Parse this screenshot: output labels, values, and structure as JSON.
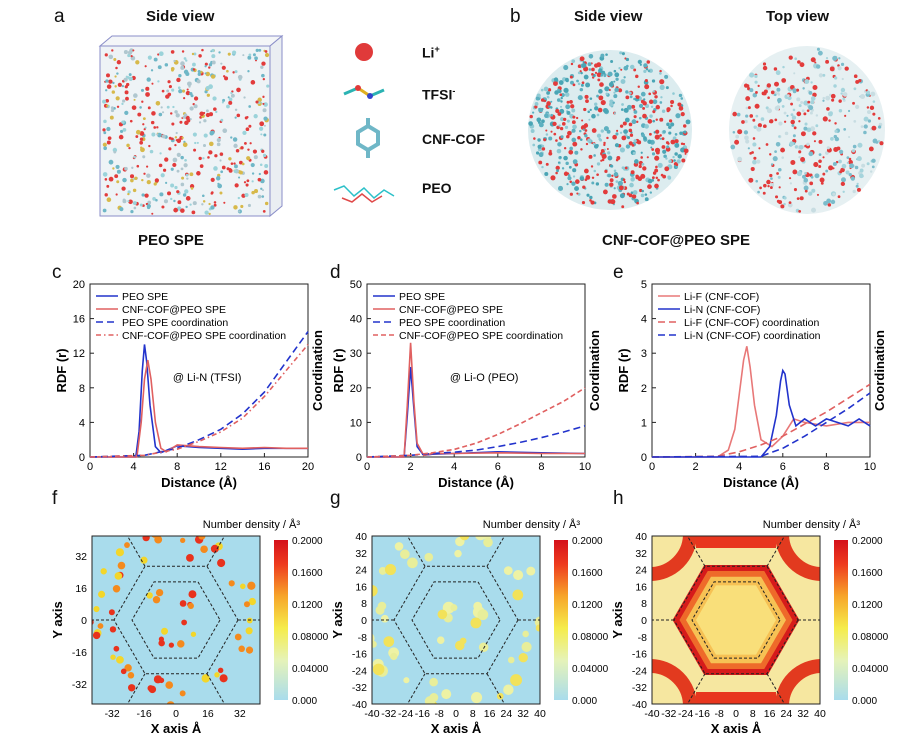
{
  "panels": {
    "a": {
      "letter": "a",
      "title": "Side view",
      "caption": "PEO  SPE"
    },
    "b": {
      "letter": "b",
      "title_left": "Side view",
      "title_right": "Top view",
      "caption": "CNF-COF@PEO  SPE"
    },
    "legend": {
      "li": "Li",
      "li_sup": "+",
      "tfsi": "TFSI",
      "tfsi_sup": "-",
      "cof": "CNF-COF",
      "peo": "PEO"
    }
  },
  "chart_data": [
    {
      "id": "c",
      "letter": "c",
      "type": "line",
      "xlabel": "Distance (Å)",
      "ylabel": "RDF (r)",
      "y2label": "Coordination",
      "annotation": "@ Li-N (TFSI)",
      "xlim": [
        0,
        20
      ],
      "ylim": [
        0,
        20
      ],
      "xticks": [
        0,
        4,
        8,
        12,
        16,
        20
      ],
      "yticks": [
        0,
        4,
        8,
        12,
        16,
        20
      ],
      "series": [
        {
          "name": "PEO SPE",
          "color": "#2233cc",
          "dash": "",
          "x": [
            0,
            4.2,
            4.5,
            4.8,
            5.0,
            5.2,
            5.5,
            6.0,
            6.5,
            8,
            10,
            12,
            14,
            16,
            18,
            20
          ],
          "y": [
            0,
            0,
            3,
            10,
            13,
            11,
            6,
            1.2,
            0.5,
            1.3,
            1.1,
            1.0,
            0.9,
            1.0,
            1.0,
            1.0
          ]
        },
        {
          "name": "CNF-COF@PEO SPE",
          "color": "#e06060",
          "dash": "",
          "x": [
            0,
            4.3,
            4.7,
            5.0,
            5.3,
            5.6,
            6.0,
            6.5,
            7,
            8,
            10,
            12,
            14,
            16,
            18,
            20
          ],
          "y": [
            0,
            0,
            4,
            9,
            11.2,
            9,
            4,
            1.0,
            0.6,
            1.4,
            1.2,
            1.1,
            1.0,
            1.1,
            1.0,
            1.0
          ]
        },
        {
          "name": "PEO SPE coordination",
          "color": "#2233cc",
          "dash": "7,4",
          "x": [
            0,
            5,
            8,
            10,
            12,
            14,
            16,
            18,
            20
          ],
          "y": [
            0,
            0.2,
            1,
            2,
            3.2,
            5,
            7.5,
            11,
            14.5
          ]
        },
        {
          "name": "CNF-COF@PEO SPE coordination",
          "color": "#e06060",
          "dash": "5,3,1.5,3",
          "x": [
            0,
            5,
            8,
            10,
            12,
            14,
            16,
            18,
            20
          ],
          "y": [
            0,
            0.2,
            0.9,
            1.8,
            2.9,
            4.5,
            7,
            10,
            13
          ]
        }
      ]
    },
    {
      "id": "d",
      "letter": "d",
      "type": "line",
      "xlabel": "Distance (Å)",
      "ylabel": "RDF (r)",
      "y2label": "Coordination",
      "annotation": "@ Li-O (PEO)",
      "xlim": [
        0,
        10
      ],
      "ylim": [
        0,
        50
      ],
      "xticks": [
        0,
        2,
        4,
        6,
        8,
        10
      ],
      "yticks": [
        0,
        10,
        20,
        30,
        40,
        50
      ],
      "series": [
        {
          "name": "PEO SPE",
          "color": "#2233cc",
          "dash": "",
          "x": [
            0,
            1.7,
            1.85,
            2.0,
            2.15,
            2.3,
            2.6,
            3,
            4,
            6,
            8,
            10
          ],
          "y": [
            0,
            0,
            12,
            26,
            14,
            3,
            0.5,
            0.8,
            1.0,
            1.5,
            1.2,
            1.0
          ]
        },
        {
          "name": "CNF-COF@PEO SPE",
          "color": "#e06060",
          "dash": "",
          "x": [
            0,
            1.7,
            1.85,
            2.0,
            2.15,
            2.3,
            2.6,
            3,
            4,
            6,
            8,
            10
          ],
          "y": [
            0,
            0,
            15,
            33,
            16,
            4,
            0.5,
            1.0,
            1.0,
            1.2,
            1.0,
            1.0
          ]
        },
        {
          "name": "PEO SPE coordination",
          "color": "#2233cc",
          "dash": "7,4",
          "x": [
            0,
            2,
            3,
            4,
            5,
            6,
            7,
            8,
            9,
            10
          ],
          "y": [
            0,
            0.5,
            1,
            1.4,
            2,
            3,
            4.2,
            5.6,
            7.2,
            9
          ]
        },
        {
          "name": "CNF-COF@PEO SPE coordination",
          "color": "#e06060",
          "dash": "5,3",
          "x": [
            0,
            2,
            3,
            4,
            5,
            6,
            7,
            8,
            9,
            10
          ],
          "y": [
            0,
            0.5,
            1.2,
            2.2,
            4,
            6.5,
            9.5,
            12.8,
            16,
            20
          ]
        }
      ]
    },
    {
      "id": "e",
      "letter": "e",
      "type": "line",
      "xlabel": "Distance (Å)",
      "ylabel": "RDF (r)",
      "y2label": "Coordination",
      "annotation": "",
      "xlim": [
        0,
        10
      ],
      "ylim": [
        0,
        5
      ],
      "xticks": [
        0,
        2,
        4,
        6,
        8,
        10
      ],
      "yticks": [
        0,
        1,
        2,
        3,
        4,
        5
      ],
      "series": [
        {
          "name": "Li-F (CNF-COF)",
          "color": "#e87878",
          "dash": "",
          "x": [
            0,
            3,
            3.5,
            3.8,
            4.0,
            4.2,
            4.35,
            4.5,
            4.7,
            5.0,
            5.5,
            6,
            6.5,
            7,
            8,
            9,
            10
          ],
          "y": [
            0,
            0,
            0.2,
            0.8,
            1.8,
            2.8,
            3.2,
            2.6,
            1.5,
            0.5,
            0.3,
            0.6,
            1.1,
            1.0,
            0.9,
            1.0,
            1.0
          ]
        },
        {
          "name": "Li-N (CNF-COF)",
          "color": "#2233cc",
          "dash": "",
          "x": [
            0,
            5,
            5.4,
            5.7,
            5.9,
            6.0,
            6.1,
            6.3,
            6.6,
            7,
            7.5,
            8,
            8.5,
            9,
            9.5,
            10
          ],
          "y": [
            0,
            0,
            0.3,
            1.2,
            2.2,
            2.5,
            2.4,
            1.5,
            0.9,
            1.1,
            0.9,
            1.1,
            1.0,
            0.9,
            1.1,
            0.9
          ]
        },
        {
          "name": "Li-F (CNF-COF) coordination",
          "color": "#e06060",
          "dash": "7,4",
          "x": [
            0,
            3,
            4,
            5,
            6,
            7,
            8,
            9,
            10
          ],
          "y": [
            0,
            0.02,
            0.15,
            0.35,
            0.6,
            0.95,
            1.3,
            1.7,
            2.1
          ]
        },
        {
          "name": "Li-N (CNF-COF) coordination",
          "color": "#2233cc",
          "dash": "7,4",
          "x": [
            0,
            5,
            6,
            7,
            8,
            9,
            10
          ],
          "y": [
            0,
            0.02,
            0.25,
            0.6,
            1.0,
            1.4,
            1.85
          ]
        }
      ]
    },
    {
      "id": "f",
      "letter": "f",
      "type": "heatmap",
      "xlabel": "X axis Å",
      "ylabel": "Y axis",
      "colorbar_title": "Number density / Å³",
      "xticks": [
        "-32",
        "-16",
        "0",
        "16",
        "32"
      ],
      "yticks": [
        "32",
        "16",
        "0",
        "-16",
        "-32"
      ],
      "colorbar_ticks": [
        "0.2000",
        "0.1600",
        "0.1200",
        "0.08000",
        "0.04000",
        "0.000"
      ]
    },
    {
      "id": "g",
      "letter": "g",
      "type": "heatmap",
      "xlabel": "X axis Å",
      "ylabel": "Y axis",
      "colorbar_title": "Number density / Å³",
      "xticks": [
        "-40",
        "-32",
        "-24",
        "-16",
        "-8",
        "0",
        "8",
        "16",
        "24",
        "32",
        "40"
      ],
      "yticks": [
        "40",
        "32",
        "24",
        "16",
        "8",
        "0",
        "-8",
        "-16",
        "-24",
        "-32",
        "-40"
      ],
      "colorbar_ticks": [
        "0.2000",
        "0.1600",
        "0.1200",
        "0.08000",
        "0.04000",
        "0.000"
      ]
    },
    {
      "id": "h",
      "letter": "h",
      "type": "heatmap",
      "xlabel": "X axis Å",
      "ylabel": "Y axis",
      "colorbar_title": "Number density / Å³",
      "xticks": [
        "-40",
        "-32",
        "-24",
        "-16",
        "-8",
        "0",
        "8",
        "16",
        "24",
        "32",
        "40"
      ],
      "yticks": [
        "40",
        "32",
        "24",
        "16",
        "8",
        "0",
        "-8",
        "-16",
        "-24",
        "-32",
        "-40"
      ],
      "colorbar_ticks": [
        "0.2000",
        "0.1600",
        "0.1200",
        "0.08000",
        "0.04000",
        "0.000"
      ]
    }
  ]
}
